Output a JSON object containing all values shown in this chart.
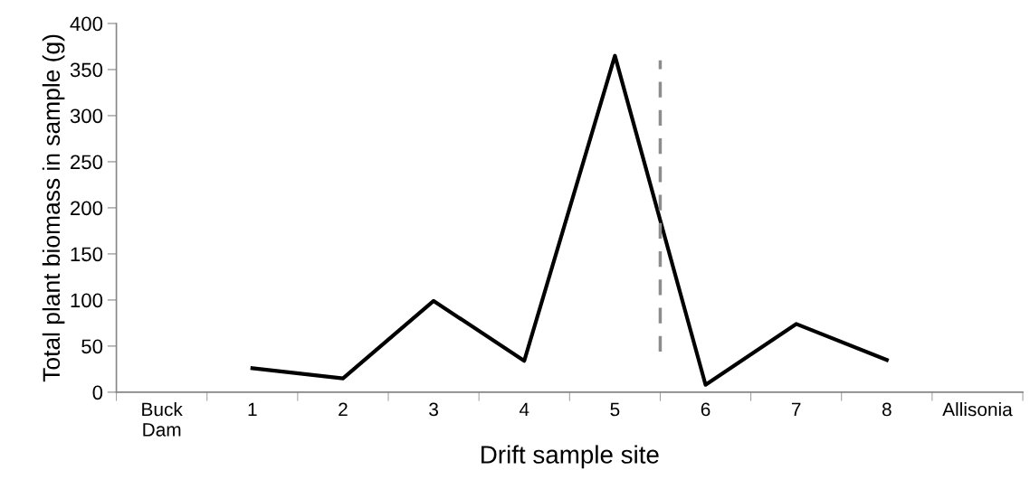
{
  "chart_data": {
    "type": "line",
    "xlabel": "Drift sample site",
    "ylabel": "Total plant biomass in sample (g)",
    "categories": [
      "Buck\nDam",
      "1",
      "2",
      "3",
      "4",
      "5",
      "6",
      "7",
      "8",
      "Allisonia"
    ],
    "series": [
      {
        "color": "#000000",
        "values": [
          null,
          26,
          15,
          99,
          34,
          365,
          8,
          74,
          35,
          null
        ],
        "line_style": "solid"
      }
    ],
    "ylim": [
      0,
      400
    ],
    "yticks": [
      0,
      50,
      100,
      150,
      200,
      250,
      300,
      350,
      400
    ],
    "grid": false,
    "legend": false,
    "marker": "none"
  }
}
